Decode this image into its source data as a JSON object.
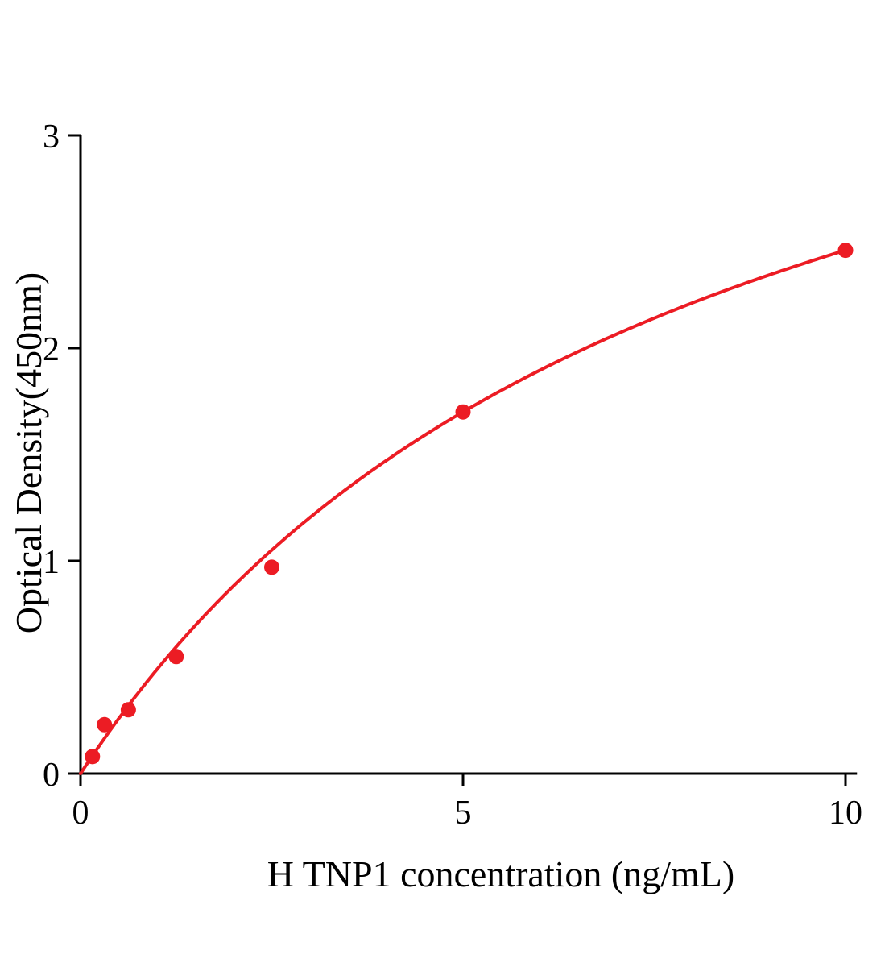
{
  "chart_data": {
    "type": "scatter",
    "title": "",
    "xlabel": "H TNP1 concentration (ng/mL)",
    "ylabel": "Optical Density(450nm)",
    "x": [
      0.156,
      0.3125,
      0.625,
      1.25,
      2.5,
      5,
      10
    ],
    "y": [
      0.08,
      0.23,
      0.3,
      0.55,
      0.97,
      1.7,
      2.46
    ],
    "xlim": [
      0,
      10.15
    ],
    "ylim": [
      0,
      3
    ],
    "xticks": [
      0,
      5,
      10
    ],
    "yticks": [
      0,
      1,
      2,
      3
    ],
    "curve": "smooth saturating fit through origin",
    "series_color": "#ec1c24",
    "axis_color": "#000000",
    "marker": "circle",
    "grid": false,
    "legend": null
  }
}
